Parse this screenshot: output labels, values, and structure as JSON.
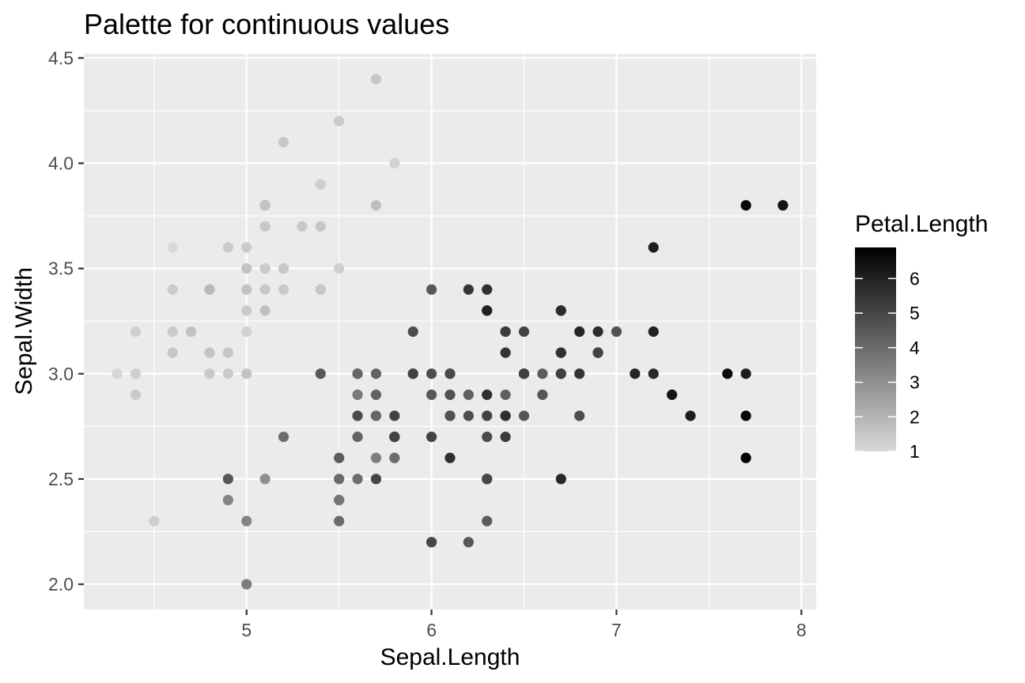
{
  "chart_data": {
    "type": "scatter",
    "title": "Palette for continuous values",
    "xlabel": "Sepal.Length",
    "ylabel": "Sepal.Width",
    "xlim": [
      4.12,
      8.08
    ],
    "ylim": [
      1.88,
      4.52
    ],
    "x_ticks": [
      5,
      6,
      7,
      8
    ],
    "x_tick_labels": [
      "5",
      "6",
      "7",
      "8"
    ],
    "y_ticks": [
      2.0,
      2.5,
      3.0,
      3.5,
      4.0,
      4.5
    ],
    "y_tick_labels": [
      "2.0",
      "2.5",
      "3.0",
      "3.5",
      "4.0",
      "4.5"
    ],
    "grid": true,
    "legend": {
      "title": "Petal.Length",
      "position": "right",
      "type": "colorbar",
      "breaks": [
        1,
        2,
        3,
        4,
        5,
        6
      ],
      "labels": [
        "1",
        "2",
        "3",
        "4",
        "5",
        "6"
      ],
      "range": [
        1.0,
        6.9
      ],
      "low_color": "#d9d9d9",
      "high_color": "#000000"
    },
    "panel_background": "#ebebeb",
    "grid_color": "#ffffff",
    "points": [
      [
        5.1,
        3.5,
        1.4
      ],
      [
        4.9,
        3.0,
        1.4
      ],
      [
        4.7,
        3.2,
        1.3
      ],
      [
        4.6,
        3.1,
        1.5
      ],
      [
        5.0,
        3.6,
        1.4
      ],
      [
        5.4,
        3.9,
        1.7
      ],
      [
        4.6,
        3.4,
        1.4
      ],
      [
        5.0,
        3.4,
        1.5
      ],
      [
        4.4,
        2.9,
        1.4
      ],
      [
        4.9,
        3.1,
        1.5
      ],
      [
        5.4,
        3.7,
        1.5
      ],
      [
        4.8,
        3.4,
        1.6
      ],
      [
        4.8,
        3.0,
        1.4
      ],
      [
        4.3,
        3.0,
        1.1
      ],
      [
        5.8,
        4.0,
        1.2
      ],
      [
        5.7,
        4.4,
        1.5
      ],
      [
        5.4,
        3.9,
        1.3
      ],
      [
        5.1,
        3.5,
        1.4
      ],
      [
        5.7,
        3.8,
        1.7
      ],
      [
        5.1,
        3.8,
        1.5
      ],
      [
        5.4,
        3.4,
        1.7
      ],
      [
        5.1,
        3.7,
        1.5
      ],
      [
        4.6,
        3.6,
        1.0
      ],
      [
        5.1,
        3.3,
        1.7
      ],
      [
        4.8,
        3.4,
        1.9
      ],
      [
        5.0,
        3.0,
        1.6
      ],
      [
        5.0,
        3.4,
        1.6
      ],
      [
        5.2,
        3.5,
        1.5
      ],
      [
        5.2,
        3.4,
        1.4
      ],
      [
        4.7,
        3.2,
        1.6
      ],
      [
        4.8,
        3.1,
        1.6
      ],
      [
        5.4,
        3.4,
        1.5
      ],
      [
        5.2,
        4.1,
        1.5
      ],
      [
        5.5,
        4.2,
        1.4
      ],
      [
        4.9,
        3.1,
        1.5
      ],
      [
        5.0,
        3.2,
        1.2
      ],
      [
        5.5,
        3.5,
        1.3
      ],
      [
        4.9,
        3.6,
        1.4
      ],
      [
        4.4,
        3.0,
        1.3
      ],
      [
        5.1,
        3.4,
        1.5
      ],
      [
        5.0,
        3.5,
        1.3
      ],
      [
        4.5,
        2.3,
        1.3
      ],
      [
        4.4,
        3.2,
        1.3
      ],
      [
        5.0,
        3.5,
        1.6
      ],
      [
        5.1,
        3.8,
        1.9
      ],
      [
        4.8,
        3.0,
        1.4
      ],
      [
        5.1,
        3.8,
        1.6
      ],
      [
        4.6,
        3.2,
        1.4
      ],
      [
        5.3,
        3.7,
        1.5
      ],
      [
        5.0,
        3.3,
        1.4
      ],
      [
        7.0,
        3.2,
        4.7
      ],
      [
        6.4,
        3.2,
        4.5
      ],
      [
        6.9,
        3.1,
        4.9
      ],
      [
        5.5,
        2.3,
        4.0
      ],
      [
        6.5,
        2.8,
        4.6
      ],
      [
        5.7,
        2.8,
        4.5
      ],
      [
        6.3,
        3.3,
        4.7
      ],
      [
        4.9,
        2.4,
        3.3
      ],
      [
        6.6,
        2.9,
        4.6
      ],
      [
        5.2,
        2.7,
        3.9
      ],
      [
        5.0,
        2.0,
        3.5
      ],
      [
        5.9,
        3.0,
        4.2
      ],
      [
        6.0,
        2.2,
        4.0
      ],
      [
        6.1,
        2.9,
        4.7
      ],
      [
        5.6,
        2.9,
        3.6
      ],
      [
        6.7,
        3.1,
        4.4
      ],
      [
        5.6,
        3.0,
        4.5
      ],
      [
        5.8,
        2.7,
        4.1
      ],
      [
        6.2,
        2.2,
        4.5
      ],
      [
        5.6,
        2.5,
        3.9
      ],
      [
        5.9,
        3.2,
        4.8
      ],
      [
        6.1,
        2.8,
        4.0
      ],
      [
        6.3,
        2.5,
        4.9
      ],
      [
        6.1,
        2.8,
        4.7
      ],
      [
        6.4,
        2.9,
        4.3
      ],
      [
        6.6,
        3.0,
        4.4
      ],
      [
        6.8,
        2.8,
        4.8
      ],
      [
        6.7,
        3.0,
        5.0
      ],
      [
        6.0,
        2.9,
        4.5
      ],
      [
        5.7,
        2.6,
        3.5
      ],
      [
        5.5,
        2.4,
        3.8
      ],
      [
        5.5,
        2.4,
        3.7
      ],
      [
        5.8,
        2.7,
        3.9
      ],
      [
        6.0,
        2.7,
        5.1
      ],
      [
        5.4,
        3.0,
        4.5
      ],
      [
        6.0,
        3.4,
        4.5
      ],
      [
        6.7,
        3.1,
        4.7
      ],
      [
        6.3,
        2.3,
        4.4
      ],
      [
        5.6,
        3.0,
        4.1
      ],
      [
        5.5,
        2.5,
        4.0
      ],
      [
        5.5,
        2.6,
        4.4
      ],
      [
        6.1,
        3.0,
        4.6
      ],
      [
        5.8,
        2.6,
        4.0
      ],
      [
        5.0,
        2.3,
        3.3
      ],
      [
        5.6,
        2.7,
        4.2
      ],
      [
        5.7,
        3.0,
        4.2
      ],
      [
        5.7,
        2.9,
        4.2
      ],
      [
        6.2,
        2.9,
        4.3
      ],
      [
        5.1,
        2.5,
        3.0
      ],
      [
        5.7,
        2.8,
        4.1
      ],
      [
        6.3,
        3.3,
        6.0
      ],
      [
        5.8,
        2.7,
        5.1
      ],
      [
        7.1,
        3.0,
        5.9
      ],
      [
        6.3,
        2.9,
        5.6
      ],
      [
        6.5,
        3.0,
        5.8
      ],
      [
        7.6,
        3.0,
        6.6
      ],
      [
        4.9,
        2.5,
        4.5
      ],
      [
        7.3,
        2.9,
        6.3
      ],
      [
        6.7,
        2.5,
        5.8
      ],
      [
        7.2,
        3.6,
        6.1
      ],
      [
        6.5,
        3.2,
        5.1
      ],
      [
        6.4,
        2.7,
        5.3
      ],
      [
        6.8,
        3.0,
        5.5
      ],
      [
        5.7,
        2.5,
        5.0
      ],
      [
        5.8,
        2.8,
        5.1
      ],
      [
        6.4,
        3.2,
        5.3
      ],
      [
        6.5,
        3.0,
        5.5
      ],
      [
        7.7,
        3.8,
        6.7
      ],
      [
        7.7,
        2.6,
        6.9
      ],
      [
        6.0,
        2.2,
        5.0
      ],
      [
        6.9,
        3.2,
        5.7
      ],
      [
        5.6,
        2.8,
        4.9
      ],
      [
        7.7,
        2.8,
        6.7
      ],
      [
        6.3,
        2.7,
        4.9
      ],
      [
        6.7,
        3.3,
        5.7
      ],
      [
        7.2,
        3.2,
        6.0
      ],
      [
        6.2,
        2.8,
        4.8
      ],
      [
        6.1,
        3.0,
        4.9
      ],
      [
        6.4,
        2.8,
        5.6
      ],
      [
        7.2,
        3.0,
        5.8
      ],
      [
        7.4,
        2.8,
        6.1
      ],
      [
        7.9,
        3.8,
        6.4
      ],
      [
        6.4,
        2.8,
        5.6
      ],
      [
        6.3,
        2.8,
        5.1
      ],
      [
        6.1,
        2.6,
        5.6
      ],
      [
        7.7,
        3.0,
        6.1
      ],
      [
        6.3,
        3.4,
        5.6
      ],
      [
        6.4,
        3.1,
        5.5
      ],
      [
        6.0,
        3.0,
        4.8
      ],
      [
        6.9,
        3.1,
        5.4
      ],
      [
        6.7,
        3.1,
        5.6
      ],
      [
        6.9,
        3.1,
        5.1
      ],
      [
        5.8,
        2.7,
        5.1
      ],
      [
        6.8,
        3.2,
        5.9
      ],
      [
        6.7,
        3.3,
        5.7
      ],
      [
        6.7,
        3.0,
        5.2
      ],
      [
        6.3,
        2.5,
        5.0
      ],
      [
        6.5,
        3.0,
        5.2
      ],
      [
        6.2,
        3.4,
        5.4
      ],
      [
        5.9,
        3.0,
        5.1
      ]
    ]
  }
}
